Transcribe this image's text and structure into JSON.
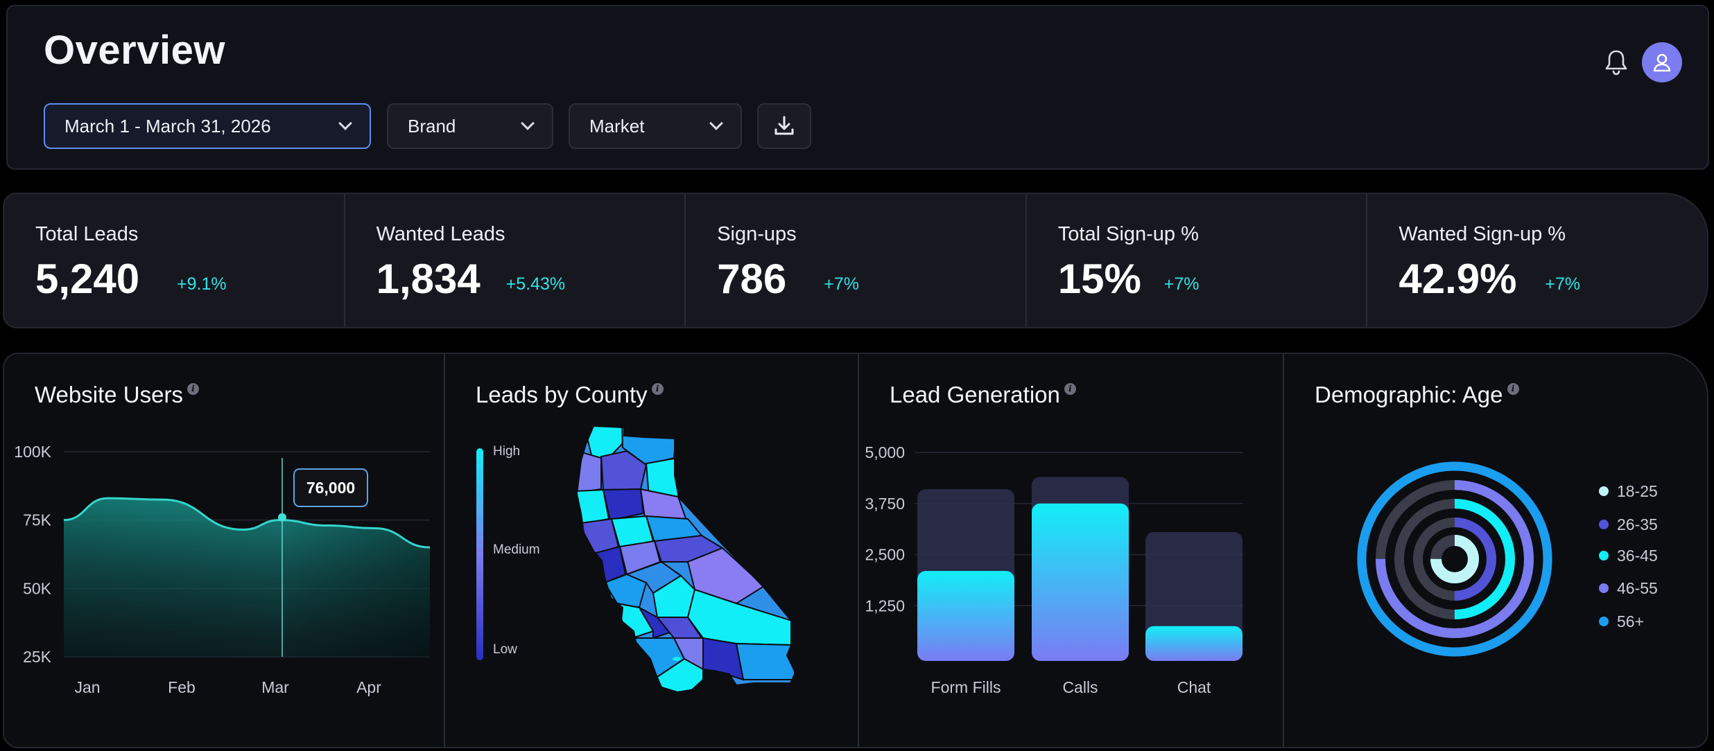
{
  "header": {
    "title": "Overview",
    "filters": {
      "date_range": "March 1 - March 31, 2026",
      "brand": "Brand",
      "market": "Market"
    },
    "icons": [
      "chevron-down-icon",
      "download-icon",
      "bell-icon",
      "user-icon"
    ]
  },
  "kpis": [
    {
      "label": "Total Leads",
      "value": "5,240",
      "change": "+9.1%"
    },
    {
      "label": "Wanted Leads",
      "value": "1,834",
      "change": "+5.43%"
    },
    {
      "label": "Sign-ups",
      "value": "786",
      "change": "+7%"
    },
    {
      "label": "Total Sign-up %",
      "value": "15%",
      "change": "+7%"
    },
    {
      "label": "Wanted Sign-up %",
      "value": "42.9%",
      "change": "+7%"
    }
  ],
  "colors": {
    "accent": "#2fe3e6",
    "teal": "#19c6bd",
    "cyan": "#12eef7",
    "violet": "#7b7cf0",
    "indigo": "#4f4fd8",
    "blue": "#1b9df0"
  },
  "panels": {
    "website_users": {
      "title": "Website Users"
    },
    "leads_by_county": {
      "title": "Leads by County",
      "legend": {
        "high": "High",
        "medium": "Medium",
        "low": "Low"
      }
    },
    "lead_generation": {
      "title": "Lead Generation"
    },
    "demographic_age": {
      "title": "Demographic: Age"
    }
  },
  "chart_data": [
    {
      "type": "area",
      "title": "Website Users",
      "x": [
        "Jan",
        "Feb",
        "Mar",
        "Apr"
      ],
      "y_ticks": [
        "100K",
        "75K",
        "50K",
        "25K"
      ],
      "ylim": [
        25000,
        100000
      ],
      "series": [
        {
          "points": [
            [
              0.0,
              75000
            ],
            [
              0.12,
              83000
            ],
            [
              0.27,
              82500
            ],
            [
              0.49,
              71500
            ],
            [
              0.59,
              75000
            ],
            [
              0.72,
              73000
            ],
            [
              0.85,
              72000
            ],
            [
              1.0,
              65000
            ]
          ]
        }
      ],
      "highlight": {
        "x_label": "Mar",
        "value": 76000,
        "label": "76,000"
      }
    },
    {
      "type": "map",
      "title": "Leads by County",
      "legend": [
        "High",
        "Medium",
        "Low"
      ],
      "region": "California counties"
    },
    {
      "type": "bar",
      "title": "Lead Generation",
      "categories": [
        "Form Fills",
        "Calls",
        "Chat"
      ],
      "y_ticks": [
        "5,000",
        "3,750",
        "2,500",
        "1,250"
      ],
      "ylim": [
        0,
        5000
      ],
      "series": [
        {
          "role": "target",
          "values": [
            4100,
            4400,
            3050
          ]
        },
        {
          "role": "actual",
          "values": [
            2100,
            3750,
            750
          ]
        }
      ]
    },
    {
      "type": "radial-bar",
      "title": "Demographic: Age",
      "categories": [
        "18-25",
        "26-35",
        "36-45",
        "46-55",
        "56+"
      ],
      "values": [
        0.75,
        0.5,
        0.5,
        0.75,
        1.0
      ],
      "colors": [
        "#bff5f7",
        "#5253d6",
        "#12eef7",
        "#7b7cf0",
        "#1b9df0"
      ]
    }
  ]
}
